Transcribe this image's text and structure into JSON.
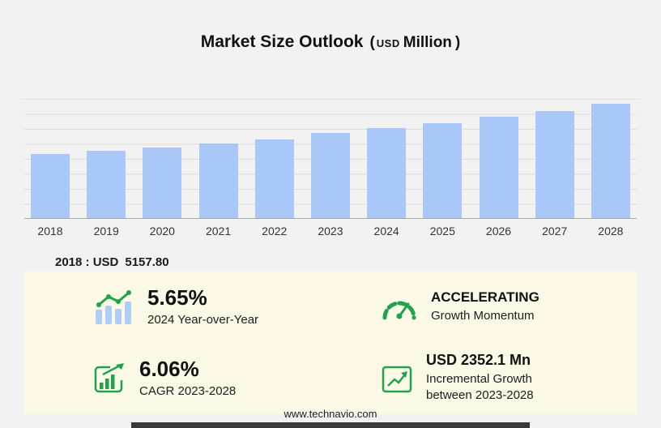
{
  "title": {
    "main": "Market Size Outlook",
    "paren_open": "(",
    "currency": "USD",
    "unit": "Million",
    "paren_close": ")"
  },
  "chart_data": {
    "type": "bar",
    "title": "Market Size Outlook (USD Million)",
    "categories": [
      "2018",
      "2019",
      "2020",
      "2021",
      "2022",
      "2023",
      "2024",
      "2025",
      "2026",
      "2027",
      "2028"
    ],
    "values": [
      5157.8,
      5440,
      5720,
      6020,
      6340,
      6877,
      7266,
      7690,
      8150,
      8660,
      9229
    ],
    "xlabel": "",
    "ylabel": "",
    "ylim": [
      0,
      9620
    ],
    "grid": "horizontal",
    "legend": "none",
    "bar_color": "#a9c8f8"
  },
  "annotation": {
    "prefix": "2018 : USD",
    "value": "5157.80"
  },
  "stats": [
    {
      "icon": "trend-bars-icon",
      "value": "5.65%",
      "label": "2024 Year-over-Year"
    },
    {
      "icon": "speedometer-icon",
      "value": "ACCELERATING",
      "label": "Growth Momentum"
    },
    {
      "icon": "cagr-chart-icon",
      "value": "6.06%",
      "label": "CAGR 2023-2028"
    },
    {
      "icon": "incremental-growth-icon",
      "value": "USD 2352.1 Mn",
      "label": "Incremental Growth between 2023-2028"
    }
  ],
  "footer": {
    "url": "www.technavio.com"
  },
  "colors": {
    "bar": "#a9c8f8",
    "accent_green": "#21a34e",
    "panel_bg": "#fcf9e6",
    "page_bg": "#f2f2f2"
  }
}
